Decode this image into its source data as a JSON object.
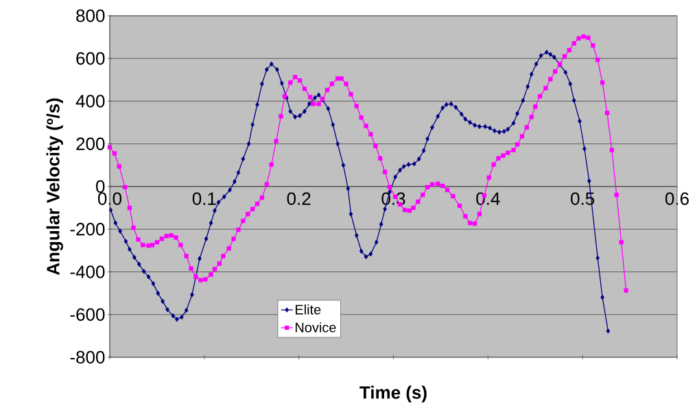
{
  "chart_data": {
    "type": "line",
    "xlabel": "Time (s)",
    "ylabel": "Angular Velocity (º/s)",
    "xlim": [
      0,
      0.6
    ],
    "ylim": [
      -800,
      800
    ],
    "xticks": [
      {
        "value": 0,
        "label": "0.0"
      },
      0.1,
      0.2,
      0.3,
      0.4,
      0.5,
      0.6
    ],
    "yticks": [
      -800,
      -600,
      -400,
      -200,
      0,
      200,
      400,
      600,
      800
    ],
    "grid": "y",
    "legend": "bottom left",
    "line_style": "solid",
    "series": [
      {
        "name": "Elite",
        "color": "#000080",
        "marker": "diamond",
        "x": [
          0.001,
          0.006,
          0.011,
          0.017,
          0.021,
          0.026,
          0.031,
          0.036,
          0.041,
          0.046,
          0.051,
          0.056,
          0.061,
          0.067,
          0.071,
          0.076,
          0.081,
          0.087,
          0.095,
          0.102,
          0.107,
          0.111,
          0.115,
          0.121,
          0.127,
          0.132,
          0.136,
          0.141,
          0.147,
          0.151,
          0.156,
          0.161,
          0.166,
          0.171,
          0.177,
          0.182,
          0.187,
          0.191,
          0.196,
          0.201,
          0.206,
          0.211,
          0.217,
          0.221,
          0.225,
          0.231,
          0.236,
          0.241,
          0.247,
          0.252,
          0.255,
          0.261,
          0.266,
          0.271,
          0.276,
          0.282,
          0.287,
          0.291,
          0.296,
          0.302,
          0.307,
          0.311,
          0.316,
          0.322,
          0.327,
          0.332,
          0.336,
          0.341,
          0.347,
          0.352,
          0.356,
          0.361,
          0.366,
          0.372,
          0.376,
          0.381,
          0.386,
          0.391,
          0.397,
          0.402,
          0.407,
          0.412,
          0.417,
          0.421,
          0.427,
          0.431,
          0.437,
          0.442,
          0.446,
          0.451,
          0.456,
          0.462,
          0.466,
          0.47,
          0.476,
          0.482,
          0.487,
          0.491,
          0.497,
          0.502,
          0.507,
          0.516,
          0.521,
          0.527
        ],
        "values": [
          -110,
          -171,
          -209,
          -257,
          -294,
          -332,
          -364,
          -397,
          -423,
          -455,
          -500,
          -538,
          -577,
          -606,
          -622,
          -612,
          -580,
          -507,
          -338,
          -245,
          -171,
          -113,
          -74,
          -48,
          -16,
          23,
          65,
          129,
          200,
          290,
          384,
          481,
          548,
          574,
          548,
          484,
          416,
          352,
          326,
          332,
          352,
          387,
          416,
          429,
          406,
          365,
          290,
          200,
          100,
          -10,
          -129,
          -229,
          -303,
          -329,
          -316,
          -261,
          -177,
          -106,
          -26,
          45,
          77,
          94,
          103,
          106,
          129,
          168,
          223,
          277,
          329,
          368,
          384,
          387,
          371,
          339,
          316,
          300,
          287,
          281,
          281,
          274,
          261,
          255,
          258,
          268,
          297,
          342,
          403,
          468,
          526,
          574,
          613,
          629,
          619,
          606,
          571,
          535,
          481,
          403,
          306,
          177,
          26,
          -335,
          -519,
          -677
        ]
      },
      {
        "name": "Novice",
        "color": "#ff00ff",
        "marker": "square",
        "x": [
          0.0,
          0.005,
          0.01,
          0.016,
          0.021,
          0.025,
          0.03,
          0.035,
          0.041,
          0.045,
          0.05,
          0.055,
          0.06,
          0.065,
          0.07,
          0.075,
          0.081,
          0.086,
          0.091,
          0.096,
          0.101,
          0.107,
          0.111,
          0.116,
          0.12,
          0.126,
          0.131,
          0.136,
          0.141,
          0.146,
          0.151,
          0.156,
          0.161,
          0.166,
          0.171,
          0.176,
          0.181,
          0.185,
          0.191,
          0.196,
          0.201,
          0.206,
          0.212,
          0.215,
          0.221,
          0.225,
          0.23,
          0.235,
          0.241,
          0.245,
          0.25,
          0.255,
          0.261,
          0.266,
          0.271,
          0.276,
          0.281,
          0.286,
          0.291,
          0.296,
          0.302,
          0.307,
          0.312,
          0.317,
          0.321,
          0.326,
          0.331,
          0.336,
          0.341,
          0.347,
          0.352,
          0.357,
          0.363,
          0.37,
          0.376,
          0.381,
          0.386,
          0.391,
          0.396,
          0.401,
          0.406,
          0.411,
          0.416,
          0.421,
          0.427,
          0.431,
          0.436,
          0.441,
          0.446,
          0.45,
          0.455,
          0.461,
          0.466,
          0.471,
          0.476,
          0.481,
          0.486,
          0.491,
          0.496,
          0.501,
          0.506,
          0.511,
          0.516,
          0.521,
          0.526,
          0.531,
          0.536,
          0.541,
          0.546
        ],
        "values": [
          184,
          155,
          94,
          -3,
          -100,
          -193,
          -248,
          -274,
          -277,
          -274,
          -261,
          -245,
          -232,
          -229,
          -239,
          -274,
          -326,
          -384,
          -423,
          -439,
          -435,
          -413,
          -387,
          -361,
          -326,
          -290,
          -245,
          -203,
          -161,
          -129,
          -106,
          -81,
          -52,
          10,
          103,
          213,
          329,
          423,
          487,
          513,
          497,
          458,
          419,
          387,
          387,
          410,
          452,
          481,
          506,
          506,
          481,
          432,
          377,
          323,
          284,
          245,
          190,
          132,
          68,
          -3,
          -48,
          -84,
          -110,
          -113,
          -100,
          -71,
          -39,
          -3,
          10,
          13,
          3,
          -16,
          -45,
          -90,
          -139,
          -171,
          -174,
          -129,
          -42,
          42,
          103,
          132,
          145,
          158,
          171,
          197,
          235,
          277,
          326,
          374,
          423,
          461,
          503,
          539,
          574,
          610,
          639,
          671,
          694,
          703,
          697,
          661,
          594,
          487,
          345,
          171,
          -39,
          -261,
          -487
        ]
      }
    ]
  }
}
